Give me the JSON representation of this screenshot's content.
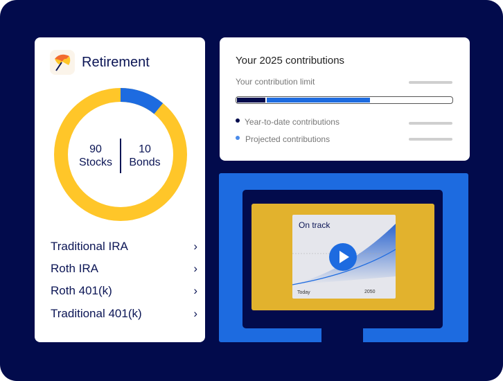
{
  "retirement": {
    "title": "Retirement",
    "icon": "umbrella-icon",
    "allocation": {
      "stocks_value": "90",
      "stocks_label": "Stocks",
      "bonds_value": "10",
      "bonds_label": "Bonds",
      "stocks_color": "#FFC629",
      "bonds_color": "#1D6BE0"
    },
    "accounts": [
      "Traditional IRA",
      "Roth IRA",
      "Roth 401(k)",
      "Traditional 401(k)"
    ]
  },
  "contributions": {
    "title": "Your 2025 contributions",
    "limit_label": "Your contribution limit",
    "ytd_fraction": 0.14,
    "projected_fraction": 0.62,
    "legend": [
      {
        "label": "Year-to-date contributions",
        "color": "#020B4C"
      },
      {
        "label": "Projected contributions",
        "color": "#4A8BEA"
      }
    ]
  },
  "video": {
    "title": "On track",
    "x_start": "Today",
    "x_end": "2050",
    "play_icon": "play-icon"
  }
}
